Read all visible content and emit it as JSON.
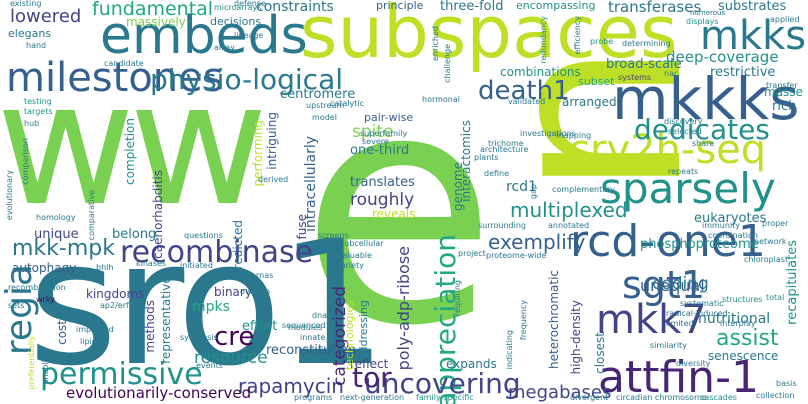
{
  "words": {
    "ww": "ww",
    "e": "e",
    "n": "n",
    "sro1": "sro1",
    "subspaces": "subspaces",
    "embeds": "embeds",
    "milestones": "milestones",
    "mkkks": "mkkks",
    "cry2h_seq": "cry2h-seq",
    "mkks": "mkks",
    "rcd_one1": "rcd-one1",
    "sparsely": "sparsely",
    "attfin_1": "attfin-1",
    "mkk7": "mkk7",
    "sgt1": "sgt1",
    "regia": "regia",
    "permissive": "permissive",
    "recombinase": "recombinase",
    "physio_logical": "physio-logical",
    "dedicates": "dedicates",
    "appreciation": "appreciation",
    "death1": "death1",
    "uncovering": "uncovering",
    "tor": "tor",
    "cre": "cre",
    "mkk_mpk": "mkk-mpk",
    "fundamental": "fundamental",
    "lowered": "lowered",
    "exemplify": "exemplify",
    "multiplexed": "multiplexed",
    "poly_adp_ribose": "poly-adp-ribose",
    "megabases": "megabases",
    "rapamycin": "rapamycin",
    "assist": "assist",
    "evolutionarily_conserved": "evolutionarily-conserved",
    "resource": "resource",
    "categorized": "categorized",
    "coding": "coding",
    "phosphoproteome": "phosphoproteome",
    "unequal": "unequal",
    "nutritional": "nutritional",
    "recapitulates": "recapitulates",
    "deep_coverage": "deep-coverage",
    "combinations": "combinations",
    "three_fold": "three-fold",
    "constraints": "constraints",
    "transferases": "transferases",
    "centromere": "centromere",
    "spite": "spite",
    "pair_wise": "pair-wise",
    "arranged": "arranged",
    "unique": "unique",
    "belong": "belong",
    "intracellularly": "intracellularly",
    "translates": "translates",
    "roughly": "roughly",
    "one_third": "one-third",
    "reveals": "reveals",
    "rcd1": "rcd1",
    "high_density": "high-density",
    "heterochromatic": "heterochromatic",
    "eukaryotes": "eukaryotes",
    "restrictive": "restrictive",
    "broad_scale": "broad-scale",
    "substrates": "substrates",
    "encompassing": "encompassing",
    "principle": "principle",
    "decisions": "decisions",
    "massively": "massively",
    "elegans": "elegans",
    "autophagy": "autophagy",
    "kingdoms": "kingdoms",
    "mpks": "mpks",
    "binary": "binary",
    "effort": "effort",
    "reconstitution": "reconstitution",
    "reflect": "reflect",
    "expands": "expands",
    "senescence": "senescence",
    "closest": "closest",
    "interactomics": "interactomics",
    "genome": "genome",
    "fuse": "fuse",
    "predicted": "predicted",
    "caenorhabditis": "caenorhabditis",
    "completion": "completion",
    "performing": "performing",
    "intriguing": "intriguing",
    "cost": "cost",
    "methods": "methods",
    "representatives": "representatives",
    "technologies": "technologies",
    "addressing": "addressing",
    "rich": "rich",
    "masse": "masse",
    "subset": "subset",
    "testing": "testing",
    "targets": "targets",
    "hub": "hub",
    "existing": "existing",
    "microarrays": "microarrays",
    "defense": "defense",
    "enriched": "enriched",
    "redundancy": "redundancy",
    "challenge": "challenge",
    "efficiency": "efficiency",
    "displays": "displays",
    "applied": "applied",
    "numerous": "numerous",
    "determining": "determining",
    "probe": "probe",
    "nac": "nac",
    "systems": "systems",
    "transfer": "transfer",
    "total": "total",
    "proper": "proper",
    "chloroplast": "chloroplast",
    "network": "network",
    "structures": "structures",
    "interplay": "interplay",
    "basis": "basis",
    "collection": "collection",
    "cascades": "cascades",
    "circadian_chromosome": "circadian chromosome",
    "divergent": "divergent",
    "family_specific": "family-specific",
    "next_generation": "next-generation",
    "programs": "programs",
    "events": "events",
    "synthesis": "synthesis",
    "improved": "improved",
    "lipid": "lipid",
    "wrky": "wrky",
    "sets": "sets",
    "recombination": "recombination",
    "enabling": "enabling",
    "preferentially": "preferentially",
    "homology": "homology",
    "comparative": "comparative",
    "evolutionary": "evolutionary",
    "comparison": "comparison",
    "bhlh": "bhlh",
    "kinases": "kinases",
    "initiated": "initiated",
    "questions": "questions",
    "rnas": "rnas",
    "ap2_erf": "ap2/erf",
    "overlap": "overlap",
    "sequenced": "sequenced",
    "dna": "dna",
    "innate": "innate",
    "modules": "modules",
    "screens": "screens",
    "subcellular": "subcellular",
    "variety": "variety",
    "valuable": "valuable",
    "severe": "severe",
    "derived": "derived",
    "project": "project",
    "proteome_wide": "proteome-wide",
    "surrounding": "surrounding",
    "annotated": "annotated",
    "frequency": "frequency",
    "requiring": "requiring",
    "indicating": "indicating",
    "diversity": "diversity",
    "similarity": "similarity",
    "limited": "limited",
    "radical_induced": "radical-induced",
    "systematic": "systematic",
    "immunity": "immunity",
    "coordination": "coordination",
    "repeats": "repeats",
    "complementary": "complementary",
    "gap": "gap",
    "define": "define",
    "plants": "plants",
    "trichome": "trichome",
    "architecture": "architecture",
    "investigations": "investigations",
    "superfamily": "superfamily",
    "validated": "validated",
    "hormonal": "hormonal",
    "catalytic": "catalytic",
    "upstream": "upstream",
    "model": "model",
    "mapping": "mapping",
    "discovery": "discovery",
    "selected": "selected",
    "share": "share",
    "candidate": "candidate",
    "hand": "hand",
    "array": "array",
    "lineage": "lineage"
  },
  "palette": [
    "#440154",
    "#482475",
    "#414487",
    "#355f8d",
    "#2a788e",
    "#21918c",
    "#22a884",
    "#44bf70",
    "#7ad151",
    "#bddf26",
    "#fde725"
  ]
}
